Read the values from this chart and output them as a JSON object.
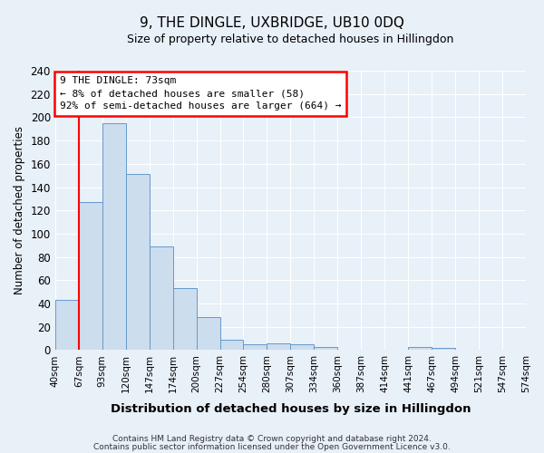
{
  "title": "9, THE DINGLE, UXBRIDGE, UB10 0DQ",
  "subtitle": "Size of property relative to detached houses in Hillingdon",
  "xlabel": "Distribution of detached houses by size in Hillingdon",
  "ylabel": "Number of detached properties",
  "bar_values": [
    43,
    127,
    195,
    151,
    89,
    53,
    28,
    9,
    5,
    6,
    5,
    3,
    0,
    0,
    0,
    3,
    2
  ],
  "bin_labels": [
    "40sqm",
    "67sqm",
    "93sqm",
    "120sqm",
    "147sqm",
    "174sqm",
    "200sqm",
    "227sqm",
    "254sqm",
    "280sqm",
    "307sqm",
    "334sqm",
    "360sqm",
    "387sqm",
    "414sqm",
    "441sqm",
    "467sqm",
    "494sqm",
    "521sqm",
    "547sqm",
    "574sqm"
  ],
  "bar_color": "#ccdded",
  "bar_edge_color": "#6699cc",
  "background_color": "#e8f0f8",
  "grid_color": "#ffffff",
  "red_line_x": 1.0,
  "annotation_text_line1": "9 THE DINGLE: 73sqm",
  "annotation_text_line2": "← 8% of detached houses are smaller (58)",
  "annotation_text_line3": "92% of semi-detached houses are larger (664) →",
  "ylim": [
    0,
    240
  ],
  "yticks": [
    0,
    20,
    40,
    60,
    80,
    100,
    120,
    140,
    160,
    180,
    200,
    220,
    240
  ],
  "footer_line1": "Contains HM Land Registry data © Crown copyright and database right 2024.",
  "footer_line2": "Contains public sector information licensed under the Open Government Licence v3.0.",
  "num_bars": 17,
  "num_ticks": 21
}
